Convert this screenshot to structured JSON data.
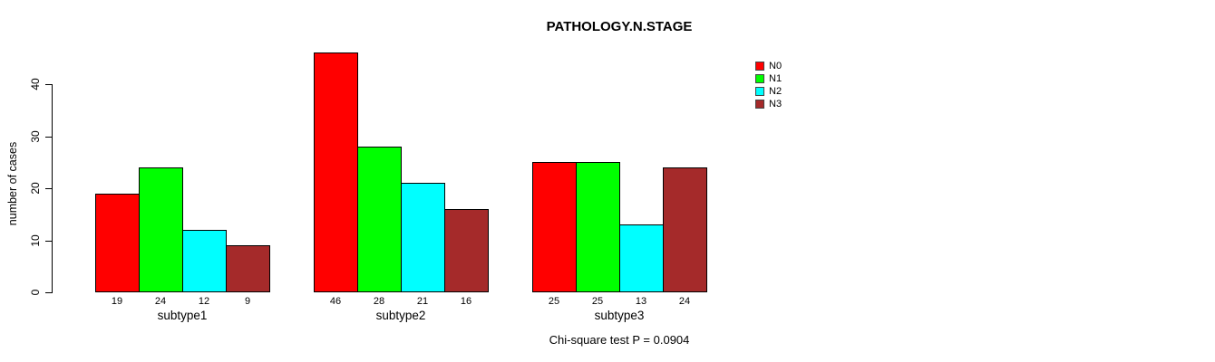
{
  "chart_data": {
    "type": "bar",
    "title": "PATHOLOGY.N.STAGE",
    "ylabel": "number of cases",
    "annotation": "Chi-square test P = 0.0904",
    "categories": [
      "subtype1",
      "subtype2",
      "subtype3"
    ],
    "series": [
      {
        "name": "N0",
        "color": "#FF0000",
        "values": [
          19,
          46,
          25
        ]
      },
      {
        "name": "N1",
        "color": "#00FF00",
        "values": [
          24,
          28,
          25
        ]
      },
      {
        "name": "N2",
        "color": "#00FFFF",
        "values": [
          12,
          21,
          13
        ]
      },
      {
        "name": "N3",
        "color": "#A52A2A",
        "values": [
          9,
          16,
          24
        ]
      }
    ],
    "yticks": [
      0,
      10,
      20,
      30,
      40
    ],
    "ylim": [
      0,
      46
    ],
    "grid": false,
    "bar_value_labels": true,
    "legend_position": "top-right",
    "colors": {
      "bar_border": "#000000",
      "axis": "#000000",
      "text": "#000000",
      "background": "#FFFFFF"
    }
  }
}
